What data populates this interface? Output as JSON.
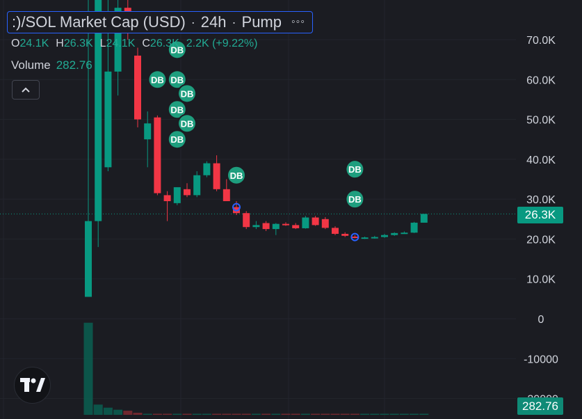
{
  "legend": {
    "title": ":)/SOL Market Cap (USD)",
    "interval": "24h",
    "exchange": "Pump",
    "separator": "·",
    "more_icon": "◦◦◦"
  },
  "ohlc": {
    "o_label": "O",
    "o_value": "24.1K",
    "h_label": "H",
    "h_value": "26.3K",
    "l_label": "L",
    "l_value": "24.1K",
    "c_label": "C",
    "c_value": "26.3K",
    "change": "2.2K (+9.22%)"
  },
  "volume": {
    "label": "Volume",
    "value": "282.76"
  },
  "collapse_icon": "chevron-up-icon",
  "price_badge": "26.3K",
  "volume_badge": "282.76",
  "colors": {
    "up": "#089981",
    "down": "#f23645",
    "background": "#1b1c22",
    "marker": "#1e9e7e",
    "accent": "#2962ff"
  },
  "chart_data": {
    "type": "candlestick",
    "title": ":)/SOL Market Cap (USD)",
    "y_ticks": [
      "70.0K",
      "60.0K",
      "50.0K",
      "40.0K",
      "30.0K",
      "20.0K",
      "10.0K",
      "0",
      "-10000",
      "-20000"
    ],
    "y_tick_values": [
      70000,
      60000,
      50000,
      40000,
      30000,
      20000,
      10000,
      0,
      -10000,
      -20000
    ],
    "ylim": [
      -21000,
      80000
    ],
    "last_price": 26300,
    "candles": [
      {
        "o": 5500,
        "h": 85000,
        "l": 5500,
        "c": 24500
      },
      {
        "o": 24500,
        "h": 88000,
        "l": 18000,
        "c": 85000
      },
      {
        "o": 38000,
        "h": 81000,
        "l": 37000,
        "c": 62000
      },
      {
        "o": 62000,
        "h": 82000,
        "l": 56000,
        "c": 78000
      },
      {
        "o": 78000,
        "h": 84000,
        "l": 70000,
        "c": 73000
      },
      {
        "o": 66000,
        "h": 68000,
        "l": 48000,
        "c": 50000
      },
      {
        "o": 45000,
        "h": 52000,
        "l": 38000,
        "c": 49000
      },
      {
        "o": 50500,
        "h": 51000,
        "l": 31000,
        "c": 31500
      },
      {
        "o": 31000,
        "h": 32000,
        "l": 24500,
        "c": 29500
      },
      {
        "o": 29000,
        "h": 33000,
        "l": 28500,
        "c": 33000
      },
      {
        "o": 32500,
        "h": 34000,
        "l": 30500,
        "c": 31000
      },
      {
        "o": 31000,
        "h": 37000,
        "l": 30500,
        "c": 36000
      },
      {
        "o": 36000,
        "h": 39500,
        "l": 35500,
        "c": 39000
      },
      {
        "o": 39000,
        "h": 41000,
        "l": 32000,
        "c": 32500
      },
      {
        "o": 32500,
        "h": 35000,
        "l": 29500,
        "c": 29500
      },
      {
        "o": 28000,
        "h": 29500,
        "l": 26000,
        "c": 26500
      },
      {
        "o": 26500,
        "h": 27000,
        "l": 22500,
        "c": 23000
      },
      {
        "o": 23000,
        "h": 24500,
        "l": 22500,
        "c": 23500
      },
      {
        "o": 24000,
        "h": 24500,
        "l": 22000,
        "c": 22500
      },
      {
        "o": 22500,
        "h": 24000,
        "l": 21000,
        "c": 23800
      },
      {
        "o": 23800,
        "h": 24200,
        "l": 23300,
        "c": 23500
      },
      {
        "o": 23500,
        "h": 24000,
        "l": 22500,
        "c": 22700
      },
      {
        "o": 22700,
        "h": 25800,
        "l": 22600,
        "c": 25400
      },
      {
        "o": 25400,
        "h": 25800,
        "l": 23300,
        "c": 23500
      },
      {
        "o": 25000,
        "h": 25500,
        "l": 22500,
        "c": 22800
      },
      {
        "o": 22800,
        "h": 23200,
        "l": 21000,
        "c": 21300
      },
      {
        "o": 21300,
        "h": 21700,
        "l": 20500,
        "c": 20800
      },
      {
        "o": 20600,
        "h": 21000,
        "l": 20200,
        "c": 20400
      },
      {
        "o": 20300,
        "h": 20600,
        "l": 20000,
        "c": 20400
      },
      {
        "o": 20300,
        "h": 20800,
        "l": 20100,
        "c": 20500
      },
      {
        "o": 20500,
        "h": 21300,
        "l": 20300,
        "c": 21000
      },
      {
        "o": 21000,
        "h": 21700,
        "l": 20800,
        "c": 21500
      },
      {
        "o": 21500,
        "h": 21900,
        "l": 21300,
        "c": 21600
      },
      {
        "o": 21600,
        "h": 24300,
        "l": 21500,
        "c": 24100
      },
      {
        "o": 24100,
        "h": 26300,
        "l": 24100,
        "c": 26300
      }
    ],
    "volume": [
      0.9,
      0.1,
      0.07,
      0.05,
      0.04,
      0.02,
      0.01,
      0.01,
      0.01,
      0.01,
      0.005,
      0.005,
      0.005,
      0.005,
      0.005,
      0.005,
      0.004,
      0.004,
      0.004,
      0.004,
      0.004,
      0.004,
      0.004,
      0.004,
      0.004,
      0.004,
      0.004,
      0.004,
      0.004,
      0.004,
      0.004,
      0.004,
      0.004,
      0.004,
      0.004
    ],
    "markers": [
      {
        "label": "DB",
        "candle": 7,
        "y": 60000
      },
      {
        "label": "DB",
        "candle": 9,
        "y": 67500
      },
      {
        "label": "DB",
        "candle": 9,
        "y": 60000
      },
      {
        "label": "DB",
        "candle": 9,
        "y": 52500
      },
      {
        "label": "DB",
        "candle": 9,
        "y": 45000
      },
      {
        "label": "DB",
        "candle": 10,
        "y": 56500
      },
      {
        "label": "DB",
        "candle": 10,
        "y": 49000
      },
      {
        "label": "DB",
        "candle": 15,
        "y": 36000
      },
      {
        "label": "DB",
        "candle": 27,
        "y": 37500
      },
      {
        "label": "DB",
        "candle": 27,
        "y": 30000
      }
    ],
    "circle_markers": [
      {
        "candle": 15,
        "y": 28000
      },
      {
        "candle": 27,
        "y": 20500
      }
    ]
  }
}
